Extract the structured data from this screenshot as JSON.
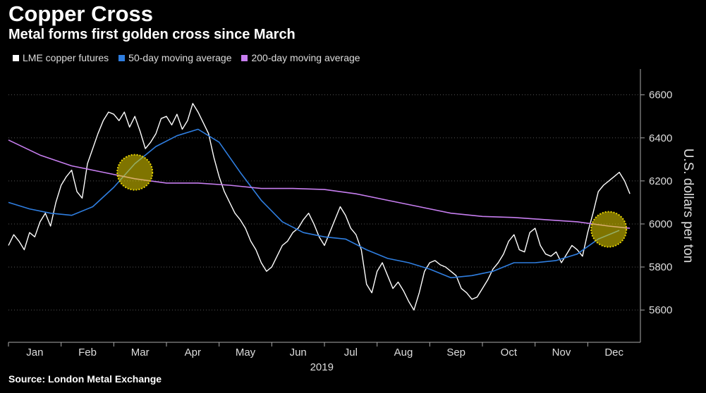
{
  "header": {
    "title": "Copper Cross",
    "subtitle": "Metal forms first golden cross since March"
  },
  "footer": {
    "source": "Source: London Metal Exchange"
  },
  "colors": {
    "background": "#000000",
    "copper": "#ffffff",
    "ma50": "#2f7ee0",
    "ma200": "#c77ef0",
    "highlight": "#e8d400",
    "grid": "#555555"
  },
  "chart_data": {
    "type": "line",
    "title": "Copper Cross",
    "subtitle": "Metal forms first golden cross since March",
    "ylabel": "U.S. dollars per ton",
    "xlabel": "2019",
    "ylim": [
      5450,
      6720
    ],
    "yticks": [
      5600,
      5800,
      6000,
      6200,
      6400,
      6600
    ],
    "y_axis_position": "right",
    "grid": "horizontal dotted",
    "legend_position": "top-left",
    "months": [
      "Jan",
      "Feb",
      "Mar",
      "Apr",
      "May",
      "Jun",
      "Jul",
      "Aug",
      "Sep",
      "Oct",
      "Nov",
      "Dec"
    ],
    "series": [
      {
        "name": "LME copper futures",
        "color": "#ffffff",
        "x": [
          0,
          0.1,
          0.2,
          0.3,
          0.4,
          0.5,
          0.6,
          0.7,
          0.8,
          0.9,
          1.0,
          1.1,
          1.2,
          1.3,
          1.4,
          1.5,
          1.6,
          1.7,
          1.8,
          1.9,
          2.0,
          2.1,
          2.2,
          2.3,
          2.4,
          2.5,
          2.6,
          2.7,
          2.8,
          2.9,
          3.0,
          3.1,
          3.2,
          3.3,
          3.4,
          3.5,
          3.6,
          3.7,
          3.8,
          3.9,
          4.0,
          4.1,
          4.2,
          4.3,
          4.4,
          4.5,
          4.6,
          4.7,
          4.8,
          4.9,
          5.0,
          5.1,
          5.2,
          5.3,
          5.4,
          5.5,
          5.6,
          5.7,
          5.8,
          5.9,
          6.0,
          6.1,
          6.2,
          6.3,
          6.4,
          6.5,
          6.6,
          6.7,
          6.8,
          6.9,
          7.0,
          7.1,
          7.2,
          7.3,
          7.4,
          7.5,
          7.6,
          7.7,
          7.8,
          7.9,
          8.0,
          8.1,
          8.2,
          8.3,
          8.4,
          8.5,
          8.6,
          8.7,
          8.8,
          8.9,
          9.0,
          9.1,
          9.2,
          9.3,
          9.4,
          9.5,
          9.6,
          9.7,
          9.8,
          9.9,
          10.0,
          10.1,
          10.2,
          10.3,
          10.4,
          10.5,
          10.6,
          10.7,
          10.8,
          10.9,
          11.0,
          11.1,
          11.2,
          11.3,
          11.4,
          11.5,
          11.6,
          11.7,
          11.8
        ],
        "values": [
          5900,
          5950,
          5920,
          5880,
          5960,
          5940,
          6010,
          6050,
          5990,
          6100,
          6180,
          6220,
          6250,
          6150,
          6120,
          6280,
          6350,
          6420,
          6480,
          6520,
          6510,
          6480,
          6520,
          6450,
          6500,
          6430,
          6350,
          6380,
          6420,
          6490,
          6500,
          6460,
          6510,
          6440,
          6480,
          6560,
          6520,
          6470,
          6420,
          6310,
          6220,
          6150,
          6100,
          6050,
          6020,
          5980,
          5920,
          5880,
          5820,
          5780,
          5800,
          5850,
          5900,
          5920,
          5960,
          5980,
          6020,
          6050,
          6000,
          5940,
          5900,
          5960,
          6020,
          6080,
          6040,
          5980,
          5950,
          5880,
          5720,
          5680,
          5780,
          5820,
          5760,
          5700,
          5730,
          5690,
          5640,
          5600,
          5680,
          5780,
          5820,
          5830,
          5810,
          5800,
          5780,
          5760,
          5700,
          5680,
          5650,
          5660,
          5700,
          5740,
          5790,
          5820,
          5860,
          5920,
          5950,
          5880,
          5870,
          5960,
          5980,
          5900,
          5860,
          5850,
          5870,
          5820,
          5860,
          5900,
          5880,
          5850,
          5960,
          6050,
          6150,
          6180,
          6200,
          6220,
          6240,
          6200,
          6140
        ]
      },
      {
        "name": "50-day moving average",
        "color": "#2f7ee0",
        "x": [
          0,
          0.4,
          0.8,
          1.2,
          1.6,
          2.0,
          2.4,
          2.8,
          3.2,
          3.6,
          4.0,
          4.4,
          4.8,
          5.2,
          5.6,
          6.0,
          6.4,
          6.8,
          7.2,
          7.6,
          8.0,
          8.4,
          8.8,
          9.2,
          9.6,
          10.0,
          10.4,
          10.8,
          11.2,
          11.6
        ],
        "values": [
          6100,
          6070,
          6050,
          6040,
          6080,
          6170,
          6280,
          6360,
          6410,
          6440,
          6380,
          6240,
          6110,
          6010,
          5960,
          5940,
          5930,
          5880,
          5840,
          5820,
          5790,
          5750,
          5760,
          5780,
          5820,
          5820,
          5830,
          5860,
          5930,
          5970
        ]
      },
      {
        "name": "200-day moving average",
        "color": "#c77ef0",
        "x": [
          0,
          0.6,
          1.2,
          1.8,
          2.4,
          3.0,
          3.6,
          4.2,
          4.8,
          5.4,
          6.0,
          6.6,
          7.2,
          7.8,
          8.4,
          9.0,
          9.6,
          10.2,
          10.8,
          11.4,
          11.8
        ],
        "values": [
          6390,
          6320,
          6270,
          6240,
          6210,
          6190,
          6190,
          6180,
          6165,
          6165,
          6160,
          6140,
          6110,
          6080,
          6050,
          6035,
          6030,
          6020,
          6010,
          5990,
          5980
        ]
      }
    ],
    "annotations": [
      {
        "type": "circle",
        "label": "golden cross",
        "x": 2.4,
        "y": 6240
      },
      {
        "type": "circle",
        "label": "golden cross",
        "x": 11.4,
        "y": 5975
      }
    ]
  }
}
